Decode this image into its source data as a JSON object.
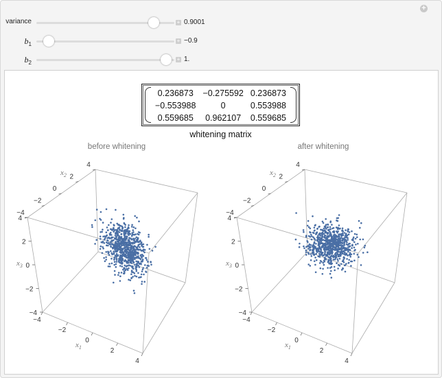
{
  "controls": [
    {
      "label": "variance",
      "sub": "",
      "value": "0.9001",
      "fraction": 0.85
    },
    {
      "label": "b",
      "sub": "1",
      "value": "−0.9",
      "fraction": 0.09
    },
    {
      "label": "b",
      "sub": "2",
      "value": "1.",
      "fraction": 0.94
    }
  ],
  "matrix": {
    "rows": [
      [
        "0.236873",
        "−0.275592",
        "0.236873"
      ],
      [
        "−0.553988",
        "0",
        "0.553988"
      ],
      [
        "0.559685",
        "0.962107",
        "0.559685"
      ]
    ],
    "title": "whitening matrix"
  },
  "plots": [
    {
      "title": "before whitening",
      "kind": "before"
    },
    {
      "title": "after whitening",
      "kind": "after"
    }
  ],
  "axes": {
    "x1_label": "x",
    "x1_sub": "1",
    "x2_label": "x",
    "x2_sub": "2",
    "x3_label": "x",
    "x3_sub": "3",
    "ticks": [
      "−4",
      "−2",
      "0",
      "2",
      "4"
    ],
    "range": [
      -4,
      4
    ]
  },
  "colors": {
    "points": "#4a6fa5",
    "box": "#aaaaaa"
  },
  "n_points": 800
}
